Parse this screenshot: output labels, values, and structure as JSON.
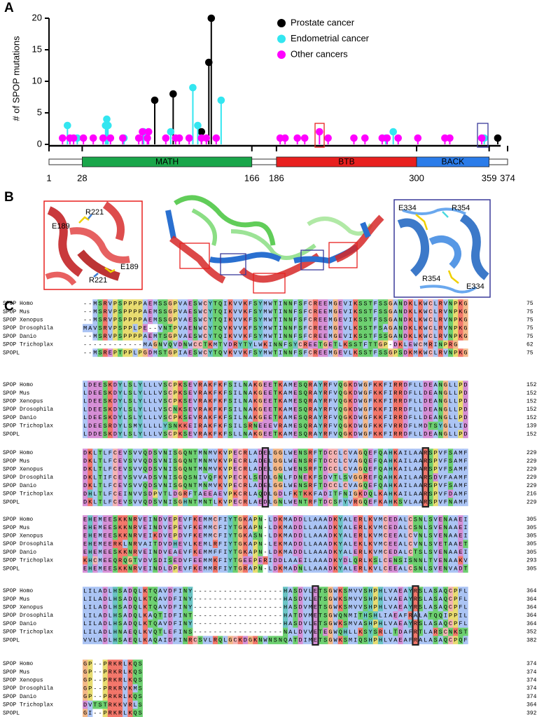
{
  "panel_labels": [
    "A",
    "B",
    "C"
  ],
  "chart_data": {
    "type": "lollipop",
    "ylabel": "# of SPOP mutations",
    "xlim": [
      1,
      374
    ],
    "xticks": [
      1,
      28,
      166,
      186,
      300,
      359,
      374
    ],
    "ylim": [
      0,
      21
    ],
    "yticks": [
      0,
      5,
      10,
      15,
      20
    ],
    "domains": [
      {
        "name": "MATH",
        "start": 28,
        "end": 166,
        "color": "#1aa64a"
      },
      {
        "name": "BTB",
        "start": 186,
        "end": 300,
        "color": "#e8201f"
      },
      {
        "name": "BACK",
        "start": 300,
        "end": 359,
        "color": "#2b7ce9"
      }
    ],
    "series": [
      {
        "name": "Prostate cancer",
        "color": "#000000",
        "x": [
          87,
          102,
          125,
          131,
          133,
          366
        ],
        "values": [
          7,
          8,
          2,
          13,
          20,
          1
        ]
      },
      {
        "name": "Endometrial cancer",
        "color": "#33e6f0",
        "x": [
          16,
          24,
          47,
          48,
          49,
          62,
          78,
          100,
          118,
          122,
          141,
          275,
          281,
          355
        ],
        "values": [
          3,
          1,
          3,
          4,
          3,
          1,
          2,
          2,
          9,
          3,
          7,
          1,
          2,
          1
        ]
      },
      {
        "name": "Other cancers",
        "color": "#ff00ff",
        "x": [
          12,
          18,
          21,
          29,
          37,
          45,
          51,
          61,
          74,
          77,
          81,
          82,
          96,
          104,
          107,
          115,
          125,
          129,
          137,
          189,
          193,
          203,
          209,
          221,
          228,
          249,
          258,
          272,
          276,
          285,
          301,
          323,
          327,
          353
        ],
        "values": [
          1,
          1,
          1,
          1,
          1,
          1,
          1,
          1,
          1,
          2,
          1,
          2,
          1,
          1,
          1,
          1,
          1,
          1,
          1,
          1,
          1,
          1,
          1,
          2,
          1,
          1,
          1,
          1,
          1,
          1,
          1,
          1,
          1,
          1
        ]
      }
    ],
    "legend": "upper right"
  },
  "structure_labels": {
    "left": [
      "R221",
      "E189",
      "E189",
      "R221"
    ],
    "right": [
      "E334",
      "R354",
      "R354",
      "E334"
    ]
  },
  "alignment": {
    "blocks": [
      {
        "rows": [
          {
            "name": "SPOP Homo",
            "seq": "--MSRVPSPPPPAEMSSGPVAESWCYTQIKVVKFSYMWTINNFSFCREEMGEVIKSSTFSSGANDKLKWCLRVNPKG",
            "end": 75
          },
          {
            "name": "SPOP Mus",
            "seq": "--MSRVPSPPPPAEMSSGPVAESWCYTQIKVVKFSYMWTINNFSFCREEMGEVIKSSTFSSGANDKLKWCLRVNPKG",
            "end": 75
          },
          {
            "name": "SPOP Xenopus",
            "seq": "--MSRVPSPPPPAEMSSGPVAESWCYTQIKVVKFSYMWTINNFSFCREEMGEVIKSSTFSSGANDKLKWCLRVNPKG",
            "end": 75
          },
          {
            "name": "SPOP Drosophila",
            "seq": "MAVSRVPSPPLPE--VNTPVAENWCYTQVKVVKFSYMWTINNFSFCREEMGEVLKSSTFSAGANDKLKWCLRVNPKG",
            "end": 75
          },
          {
            "name": "SPOP Danio",
            "seq": "--MSRVPSPPPPAEMTSGPVAESWCYTQIKVVKFSYMWTINNFSFCREEMGEVIKSSTFSSGANDKLKWCLRVNPKG",
            "end": 75
          },
          {
            "name": "SPOP Trichoplax",
            "seq": "------------MAGNVQVDNWCCTKMTVDRYTYLWKINNFSYCREETGETLKSSTFTTGP-DKLEWCMRINPRG",
            "end": 62
          },
          {
            "name": "SPOPL",
            "seq": "--MSREPTPPLPGDMSTGPIAESWCYTQVKVVKFSYMWTINNFSFCREEMGEVLKSSTFSSGPSDKMKWCLRVNPKG",
            "end": 75
          }
        ]
      },
      {
        "rows": [
          {
            "name": "SPOP Homo",
            "seq": "LDEESKDYLSLYLLLVSCPKSEVRAKFKFSILNAKGEETKAMESQRAYRFVQGKDWGFKKFIRRDFLLDEANGLLPD",
            "end": 152
          },
          {
            "name": "SPOP Mus",
            "seq": "LDEESKDYLSLYLLLVSCPKSEVRAKFKFSILNAKGEETKAMESQRAYRFVQGKDWGFKKFIRRDFLLDEANGLLPD",
            "end": 152
          },
          {
            "name": "SPOP Xenopus",
            "seq": "LDEESKDYLSLYLLLVSCPKSEVRAKFKFSILNAKGEETKAMESQRAYRFVQGKDWGFKKFIRRDFLLDEANGLLPD",
            "end": 152
          },
          {
            "name": "SPOP Drosophila",
            "seq": "LDEESKDYLSLYLLLVSCNKSEVRAKFKFSILNAKGEETKAMESQRAYRFVQGKDWGFKKFIRRDFLLDEANGLLPD",
            "end": 152
          },
          {
            "name": "SPOP Danio",
            "seq": "LDEESKDYLSLYLLLVSCPKSEVRAKFKFSILNAKGEETKAMESQRAYRFVQGKDWGFKKFIRRDFLLDEANGLLPD",
            "end": 152
          },
          {
            "name": "SPOP Trichoplax",
            "seq": "LDEESRDYLSMYLLLLYSNKKEIRAKFKFSILSRNEEEVRAMESQRAYRFVQGKDWGFKKFVRRDFLMDTSYGLLID",
            "end": 139
          },
          {
            "name": "SPOPL",
            "seq": "LDDESKDYLSLYLLLVSCPKSEVRAKFKFSLLNAKGEETKAMESQRAYRFVQGKDWGFKKFIRRDFLLDEANGLLPD",
            "end": 152
          }
        ]
      },
      {
        "rows": [
          {
            "name": "SPOP Homo",
            "seq": "DKLTLFCEVSVVQDSVNISGQNTMNMVKVPECRLADELGGLWENSRFTDCCLCVAGQEFQAHKAILAARSPVFSAMF",
            "end": 229
          },
          {
            "name": "SPOP Mus",
            "seq": "DKLTLFCEVSVVQDSVNISGQNTMNMVKVPECRLADELGGLWENSRFTDCCLCVAGQEFQAHKAILAARSPVFSAMF",
            "end": 229
          },
          {
            "name": "SPOP Xenopus",
            "seq": "DKLTLFCEVSVVQDSVNISGQNTMNMVKVPECRLADELGGLWENSRFTDCCLCVAGQEFQAHKAILAARSPVFSAMF",
            "end": 229
          },
          {
            "name": "SPOP Drosophila",
            "seq": "DKLTIFCEVSVVADSVNISGQSNIVQFKVPECKLSEDLGNLFDNEKFSDVTLSVGGREFQAHKAILAARSDVFAAMF",
            "end": 229
          },
          {
            "name": "SPOP Danio",
            "seq": "DKLTLFCEVSVVQDSVNISGQNTMNMVKVPECRLADELGGLWENSRFTDCCLCVAGQEFQAHKAILAARSPVFSAMF",
            "end": 229
          },
          {
            "name": "SPOP Trichoplax",
            "seq": "DHLTLFCEINVVSDPVTLDGRFTAEEAEVPKCRLAQDLGDLFKTKKFADITFNIGKDQLKAHKAILAARSPVFDAMF",
            "end": 216
          },
          {
            "name": "SPOPL",
            "seq": "DKLTLFCEVSVVQDSVNISGHNTMNTLKVPECRLAEDLGNLWENTRFTDCSFYVRGQEFKAHKSVLAARSPVFNAMF",
            "end": 229
          }
        ]
      },
      {
        "rows": [
          {
            "name": "SPOP Homo",
            "seq": "EHEMEESKKNRVEINDVEPEVFKEMMCFIYTGKAPN-LDKMADDLLAAADKYALERLKVMCEDALCSNLSVENAAEI",
            "end": 305
          },
          {
            "name": "SPOP Mus",
            "seq": "EHEMEESKKNRVEINDVEPEVFKEMMCFIYTGKAPN-LDKMADDLLAAADKYALERLKVMCEDALCSNLSVENAAEI",
            "end": 305
          },
          {
            "name": "SPOP Xenopus",
            "seq": "EHEMEESKKNRVEIKDVEPDVFKEMMCFIYTGKASN-LDKMADDLLAAADKYALERLKVMCEEALCVNLSVENAAEI",
            "end": 305
          },
          {
            "name": "SPOP Drosophila",
            "seq": "EHEMEERKLNRVAITDVDHEVLKEMLRFIYTGKAPN-LEKMADDLLAAADKYALEKLKVMCEEALCVNLSVETAAET",
            "end": 305
          },
          {
            "name": "SPOP Danio",
            "seq": "EHEMEESKKNRVEINDVEAEVFKEMMFFIYTGKAPN-LDKMADDLLAAADKYALERLKVMCEDALCTSLSVENAAEI",
            "end": 305
          },
          {
            "name": "SPOP Trichoplax",
            "seq": "KHCMEEQRQGTVDVSDISEDVFEEMMKFIYTGEEPERIDDLAAEILAAADKYDLQRLKSLCENSISNNLTVENAAKV",
            "end": 293
          },
          {
            "name": "SPOPL",
            "seq": "EHEMEESKKNRVEINDLDPEVFKEMMRFIYTGRAPN-LDKMADNLLAAADKYALERLKVLCEEALCSNLSVENVADT",
            "end": 305
          }
        ]
      },
      {
        "rows": [
          {
            "name": "SPOP Homo",
            "seq": "LILADLHSADQLKTQAVDFINY------------------HASDVLETSGWKSMVVSHPHLVAEAYRSLASAQCPFL",
            "end": 364
          },
          {
            "name": "SPOP Mus",
            "seq": "LILADLHSADQLKTQAVDFINY------------------HASDVLETSGWKSMVVSHPHLVAEAYRSLASAQCPFL",
            "end": 364
          },
          {
            "name": "SPOP Xenopus",
            "seq": "LILADLHSADQLKTQAVDFINY------------------HASDVMETSGWKSMVVSHPHLVAEAYRSLASAQCPFL",
            "end": 364
          },
          {
            "name": "SPOP Drosophila",
            "seq": "LILADLHSADQLKAQTIDFINT------------------HATDVMETSGWQNMITHSHLIAEAFRALATQQIPPIL",
            "end": 364
          },
          {
            "name": "SPOP Danio",
            "seq": "LILADLHSADQLKTQAVDFINY------------------HASDVLETSGWKSMVASHPHLVAEAYRSLASAQCPFL",
            "end": 364
          },
          {
            "name": "SPOP Trichoplax",
            "seq": "LILADLHNAEQLKVQTLEFINS------------------NALDVVETEGWQHLLKSYSRLLTDAFRTLARSCNKST",
            "end": 352
          },
          {
            "name": "SPOPL",
            "seq": "VVLADLHSAEQLKAQAIDFINRCSVLRQLGCKDGKNWNSNQATDIMETSGWKSMIQSHPHLVAEAFRALASAQCPQF",
            "end": 382
          }
        ]
      },
      {
        "rows": [
          {
            "name": "SPOP Homo",
            "seq": "GP--PRKRLKQS",
            "end": 374
          },
          {
            "name": "SPOP Mus",
            "seq": "GP--PRKRLKQS",
            "end": 374
          },
          {
            "name": "SPOP Xenopus",
            "seq": "GP--PRKRLKQS",
            "end": 374
          },
          {
            "name": "SPOP Drosophila",
            "seq": "GP--PRKRVKMS",
            "end": 374
          },
          {
            "name": "SPOP Danio",
            "seq": "GP--PRKRLKQS",
            "end": 374
          },
          {
            "name": "SPOP Trichoplax",
            "seq": "DVTSTRKKVRLS",
            "end": 364
          },
          {
            "name": "SPOPL",
            "seq": "GI--PRKRLKQS",
            "end": 392
          }
        ]
      }
    ]
  }
}
